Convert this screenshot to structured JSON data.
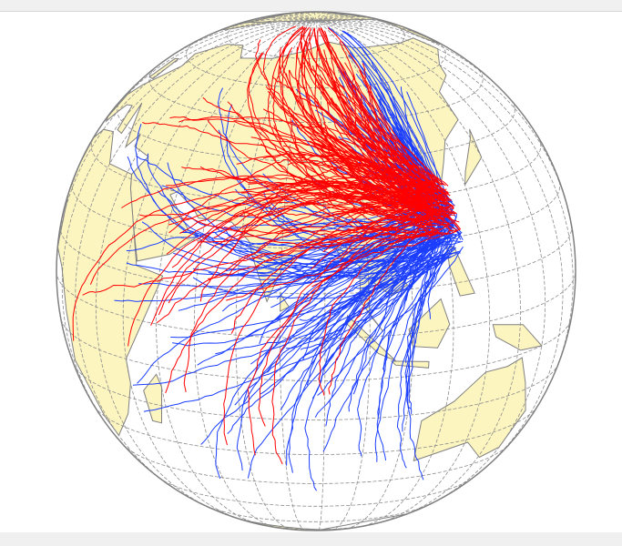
{
  "map": {
    "projection": "orthographic",
    "center": {
      "lon": 88,
      "lat": 15
    },
    "graticule_step_deg": 10,
    "colors": {
      "land": "#fdf5c0",
      "ocean": "#ffffff",
      "coast": "#808080",
      "graticule": "#8c8c8c",
      "trajectory_red": "#ff0000",
      "trajectory_blue": "#1a3dff"
    },
    "trajectory_series": [
      "red",
      "blue"
    ]
  }
}
